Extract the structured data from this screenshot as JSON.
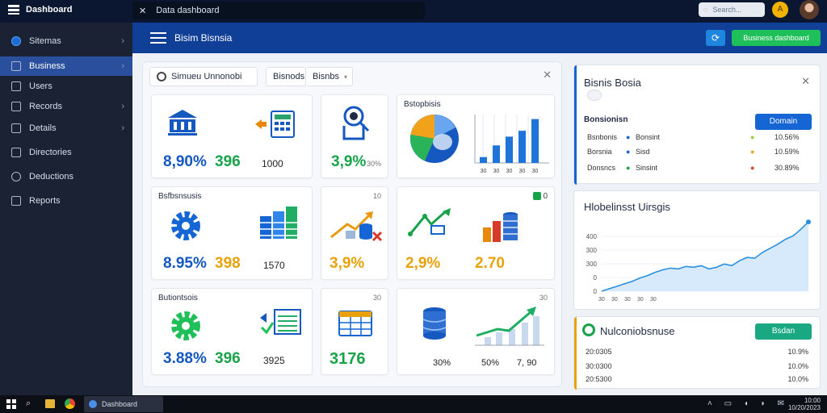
{
  "app": {
    "name": "Dashboard",
    "url_text": "Data dashboard",
    "top_search_placeholder": "Search...",
    "top_badge": "A"
  },
  "sidebar": {
    "items": [
      {
        "label": "Sitemas",
        "active": false,
        "chevron": true
      },
      {
        "label": "Business",
        "active": true,
        "chevron": true
      },
      {
        "label": "Users",
        "active": false,
        "chevron": false
      },
      {
        "label": "Records",
        "active": false,
        "chevron": true
      },
      {
        "label": "Details",
        "active": false,
        "chevron": true
      },
      {
        "label": "Directories",
        "active": false,
        "chevron": false
      },
      {
        "label": "Deductions",
        "active": false,
        "chevron": false
      },
      {
        "label": "Reports",
        "active": false,
        "chevron": false
      }
    ]
  },
  "header": {
    "title": "Bisim Bisnsia",
    "refresh_icon": "refresh-icon",
    "action_label": "Business dashboard"
  },
  "main": {
    "tabs": [
      {
        "label": "Simueu Unnonobi",
        "icon": "circle-icon"
      },
      {
        "label": "Bisnods"
      },
      {
        "label": "Bisnbs"
      }
    ],
    "cards": [
      {
        "title": "",
        "value": "8,90%",
        "value2": "396",
        "small": "1000"
      },
      {
        "title": "",
        "value": "3,9%",
        "small": "30%"
      },
      {
        "title": "Bstopbisis",
        "chart": "pie-bar"
      },
      {
        "title": "Bsfbsnsusis",
        "value": "8.95%",
        "value2": "398",
        "small": "1570"
      },
      {
        "title": "",
        "small": "10",
        "value": "3,9%"
      },
      {
        "title": "",
        "small": "0",
        "value": "2,9%",
        "value2": "2.70"
      },
      {
        "title": "Butiontsois",
        "value": "3.88%",
        "value2": "396",
        "small": "3925"
      },
      {
        "title": "",
        "small": "30",
        "value": "3176"
      },
      {
        "title": "",
        "small": "30",
        "value": "30%",
        "value2": "50%",
        "value3": "7, 90"
      }
    ],
    "mini_chart": {
      "categories": [
        "30",
        "30",
        "30",
        "30",
        "30"
      ],
      "values": [
        10,
        30,
        45,
        55,
        75
      ]
    }
  },
  "right_panel_top": {
    "title": "Bisnis Bosia",
    "subtitle": "Bonsionisn",
    "button_label": "Domain",
    "rows": [
      {
        "label": "Bsnbonis",
        "name": "Bonsint",
        "value": "10.56%",
        "color": "#9acb3c"
      },
      {
        "label": "Borsnia",
        "name": "Sisd",
        "value": "10.59%",
        "color": "#e8a317"
      },
      {
        "label": "Donsncs",
        "name": "Sinsint",
        "value": "30.89%",
        "color": "#e0412b"
      }
    ]
  },
  "right_panel_mid": {
    "title": "Hlobelinsst Uirsgis",
    "chart_data": {
      "type": "area",
      "y_ticks": [
        "400",
        "300",
        "300",
        "0",
        "0"
      ],
      "x_ticks": [
        "30",
        "30",
        "30",
        "30",
        "30"
      ],
      "values": [
        0,
        3,
        6,
        9,
        12,
        16,
        19,
        23,
        26,
        28,
        27,
        30,
        29,
        31,
        27,
        29,
        33,
        31,
        37,
        41,
        40,
        47,
        52,
        57,
        63,
        67,
        75,
        84
      ]
    }
  },
  "right_panel_bot": {
    "title": "Nulconiobsnuse",
    "button_label": "Bsdan",
    "rows": [
      {
        "label": "20:0305",
        "value": "10.9%"
      },
      {
        "label": "30:0300",
        "value": "10.0%"
      },
      {
        "label": "20:5300",
        "value": "10.0%"
      }
    ]
  },
  "taskbar": {
    "app_label": "Dashboard",
    "clock_time": "10:00",
    "clock_date": "10/20/2023"
  }
}
